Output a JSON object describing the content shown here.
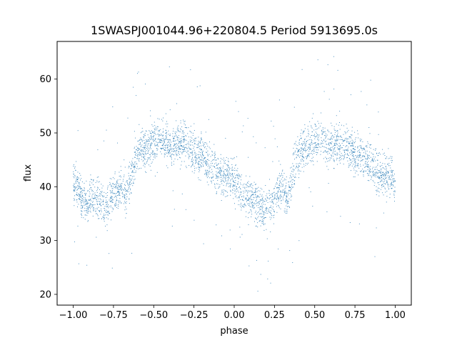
{
  "chart_data": {
    "type": "scatter",
    "title": "1SWASPJ001044.96+220804.5 Period 5913695.0s",
    "xlabel": "phase",
    "ylabel": "flux",
    "xlim": [
      -1.1,
      1.1
    ],
    "ylim": [
      18,
      67
    ],
    "xticks": [
      -1.0,
      -0.75,
      -0.5,
      -0.25,
      0.0,
      0.25,
      0.5,
      0.75,
      1.0
    ],
    "xtick_labels": [
      "−1.00",
      "−0.75",
      "−0.50",
      "−0.25",
      "0.00",
      "0.25",
      "0.50",
      "0.75",
      "1.00"
    ],
    "yticks": [
      20,
      30,
      40,
      50,
      60
    ],
    "ytick_labels": [
      "20",
      "30",
      "40",
      "50",
      "60"
    ],
    "grid": false,
    "marker_color": "#1f77b4",
    "series": [
      {
        "profile": [
          [
            -1.0,
            41
          ],
          [
            -0.97,
            40
          ],
          [
            -0.95,
            38
          ],
          [
            -0.92,
            37
          ],
          [
            -0.89,
            38
          ],
          [
            -0.86,
            38
          ],
          [
            -0.83,
            37
          ],
          [
            -0.8,
            36
          ],
          [
            -0.77,
            38
          ],
          [
            -0.73,
            39
          ],
          [
            -0.7,
            40
          ],
          [
            -0.67,
            38
          ],
          [
            -0.64,
            42
          ],
          [
            -0.61,
            46
          ],
          [
            -0.58,
            47
          ],
          [
            -0.55,
            47
          ],
          [
            -0.52,
            48
          ],
          [
            -0.48,
            49
          ],
          [
            -0.45,
            49
          ],
          [
            -0.42,
            48
          ],
          [
            -0.39,
            47
          ],
          [
            -0.36,
            48
          ],
          [
            -0.33,
            48
          ],
          [
            -0.3,
            48
          ],
          [
            -0.27,
            47
          ],
          [
            -0.24,
            46
          ],
          [
            -0.21,
            46
          ],
          [
            -0.18,
            45
          ],
          [
            -0.15,
            44
          ],
          [
            -0.12,
            43
          ],
          [
            -0.09,
            42
          ],
          [
            -0.06,
            42
          ],
          [
            -0.03,
            42
          ],
          [
            0.0,
            41
          ],
          [
            0.03,
            40
          ],
          [
            0.06,
            38
          ],
          [
            0.09,
            38
          ],
          [
            0.12,
            38
          ],
          [
            0.15,
            37
          ],
          [
            0.18,
            36
          ],
          [
            0.21,
            36
          ],
          [
            0.24,
            37
          ],
          [
            0.27,
            39
          ],
          [
            0.3,
            40
          ],
          [
            0.33,
            38
          ],
          [
            0.36,
            42
          ],
          [
            0.39,
            46
          ],
          [
            0.42,
            47
          ],
          [
            0.45,
            47
          ],
          [
            0.48,
            48
          ],
          [
            0.52,
            49
          ],
          [
            0.55,
            49
          ],
          [
            0.58,
            48
          ],
          [
            0.61,
            47
          ],
          [
            0.64,
            48
          ],
          [
            0.67,
            48
          ],
          [
            0.7,
            48
          ],
          [
            0.73,
            47
          ],
          [
            0.76,
            46
          ],
          [
            0.79,
            46
          ],
          [
            0.82,
            45
          ],
          [
            0.85,
            44
          ],
          [
            0.88,
            43
          ],
          [
            0.91,
            42
          ],
          [
            0.94,
            42
          ],
          [
            0.97,
            42
          ],
          [
            1.0,
            41
          ]
        ]
      }
    ]
  }
}
